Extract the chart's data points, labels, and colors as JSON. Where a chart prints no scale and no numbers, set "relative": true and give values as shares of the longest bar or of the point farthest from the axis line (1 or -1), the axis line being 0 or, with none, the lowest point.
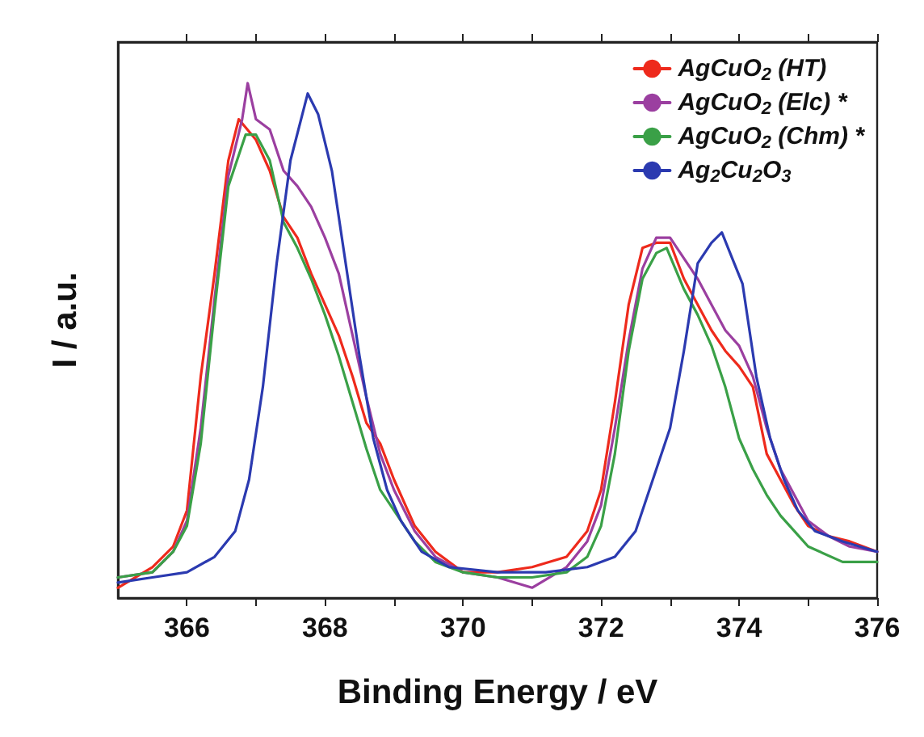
{
  "chart_data": {
    "type": "line",
    "xlabel": "Binding Energy / eV",
    "ylabel": "I / a.u.",
    "relative": true,
    "xlim": [
      365,
      376
    ],
    "xticks": [
      366,
      {
        "value": 367,
        "label": null
      },
      368,
      {
        "value": 369,
        "label": null
      },
      370,
      {
        "value": 371,
        "label": null
      },
      372,
      {
        "value": 373,
        "label": null
      },
      374,
      {
        "value": 375,
        "label": null
      },
      376
    ],
    "grid": false,
    "legend": "top right",
    "marker": "none",
    "line_style": "solid",
    "series": [
      {
        "name": "AgCuO$_{2}$ (HT)",
        "color": "#ee2a1c",
        "x": [
          365.0,
          365.5,
          365.8,
          366.0,
          366.2,
          366.4,
          366.6,
          366.75,
          367.0,
          367.2,
          367.4,
          367.6,
          367.8,
          368.0,
          368.2,
          368.4,
          368.6,
          368.8,
          369.0,
          369.3,
          369.6,
          370.0,
          370.5,
          371.0,
          371.5,
          371.8,
          372.0,
          372.2,
          372.4,
          372.6,
          372.8,
          373.0,
          373.2,
          373.4,
          373.6,
          373.8,
          374.0,
          374.2,
          374.4,
          374.6,
          374.8,
          375.0,
          375.3,
          375.6,
          376.0
        ],
        "values": [
          0.02,
          0.06,
          0.1,
          0.17,
          0.43,
          0.63,
          0.85,
          0.93,
          0.89,
          0.83,
          0.74,
          0.7,
          0.63,
          0.57,
          0.51,
          0.43,
          0.34,
          0.3,
          0.23,
          0.14,
          0.09,
          0.05,
          0.05,
          0.06,
          0.08,
          0.13,
          0.21,
          0.38,
          0.57,
          0.68,
          0.69,
          0.69,
          0.62,
          0.57,
          0.52,
          0.48,
          0.45,
          0.41,
          0.28,
          0.23,
          0.18,
          0.14,
          0.12,
          0.11,
          0.09
        ]
      },
      {
        "name": "AgCuO$_{2}$ (Elc) *",
        "color": "#9b3fa0",
        "x": [
          365.0,
          365.5,
          365.8,
          366.0,
          366.2,
          366.4,
          366.6,
          366.8,
          366.88,
          367.0,
          367.2,
          367.4,
          367.6,
          367.8,
          368.0,
          368.2,
          368.4,
          368.6,
          368.8,
          369.0,
          369.3,
          369.6,
          370.0,
          370.5,
          371.0,
          371.5,
          371.8,
          372.0,
          372.2,
          372.4,
          372.6,
          372.8,
          373.0,
          373.2,
          373.4,
          373.6,
          373.8,
          374.0,
          374.2,
          374.4,
          374.6,
          374.8,
          375.0,
          375.3,
          375.6,
          376.0
        ],
        "values": [
          0.04,
          0.05,
          0.09,
          0.15,
          0.33,
          0.58,
          0.82,
          0.93,
          1,
          0.93,
          0.91,
          0.83,
          0.8,
          0.76,
          0.7,
          0.63,
          0.51,
          0.39,
          0.28,
          0.21,
          0.13,
          0.08,
          0.05,
          0.04,
          0.02,
          0.06,
          0.11,
          0.18,
          0.33,
          0.5,
          0.64,
          0.7,
          0.7,
          0.66,
          0.62,
          0.57,
          0.52,
          0.49,
          0.43,
          0.33,
          0.25,
          0.2,
          0.15,
          0.12,
          0.1,
          0.09
        ]
      },
      {
        "name": "AgCuO$_{2}$ (Chm) *",
        "color": "#3aa047",
        "x": [
          365.0,
          365.5,
          365.8,
          366.0,
          366.2,
          366.4,
          366.6,
          366.85,
          367.0,
          367.2,
          367.4,
          367.6,
          367.8,
          368.0,
          368.2,
          368.4,
          368.6,
          368.8,
          369.0,
          369.3,
          369.6,
          370.0,
          370.5,
          371.0,
          371.5,
          371.8,
          372.0,
          372.2,
          372.4,
          372.6,
          372.8,
          372.95,
          373.2,
          373.4,
          373.6,
          373.8,
          374.0,
          374.2,
          374.4,
          374.6,
          374.8,
          375.0,
          375.5,
          376.0
        ],
        "values": [
          0.04,
          0.05,
          0.09,
          0.14,
          0.3,
          0.56,
          0.8,
          0.9,
          0.9,
          0.85,
          0.73,
          0.68,
          0.62,
          0.55,
          0.47,
          0.38,
          0.29,
          0.21,
          0.17,
          0.11,
          0.07,
          0.05,
          0.04,
          0.04,
          0.05,
          0.08,
          0.14,
          0.28,
          0.48,
          0.62,
          0.67,
          0.68,
          0.6,
          0.55,
          0.49,
          0.41,
          0.31,
          0.25,
          0.2,
          0.16,
          0.13,
          0.1,
          0.07,
          0.07
        ]
      },
      {
        "name": "Ag$_{2}$Cu$_{2}$O$_{3}$",
        "color": "#2b3ab0",
        "x": [
          365.0,
          365.5,
          366.0,
          366.4,
          366.7,
          366.9,
          367.1,
          367.3,
          367.5,
          367.75,
          367.9,
          368.1,
          368.3,
          368.5,
          368.7,
          368.9,
          369.1,
          369.4,
          369.8,
          370.5,
          371.2,
          371.8,
          372.2,
          372.5,
          372.8,
          373.0,
          373.2,
          373.4,
          373.6,
          373.75,
          373.9,
          374.05,
          374.25,
          374.45,
          374.65,
          374.85,
          375.1,
          375.5,
          376.0
        ],
        "values": [
          0.03,
          0.04,
          0.05,
          0.08,
          0.13,
          0.23,
          0.41,
          0.65,
          0.85,
          0.98,
          0.94,
          0.83,
          0.65,
          0.47,
          0.31,
          0.21,
          0.15,
          0.09,
          0.06,
          0.05,
          0.05,
          0.06,
          0.08,
          0.13,
          0.25,
          0.33,
          0.48,
          0.65,
          0.69,
          0.71,
          0.66,
          0.61,
          0.43,
          0.31,
          0.23,
          0.17,
          0.13,
          0.11,
          0.09
        ]
      }
    ]
  }
}
